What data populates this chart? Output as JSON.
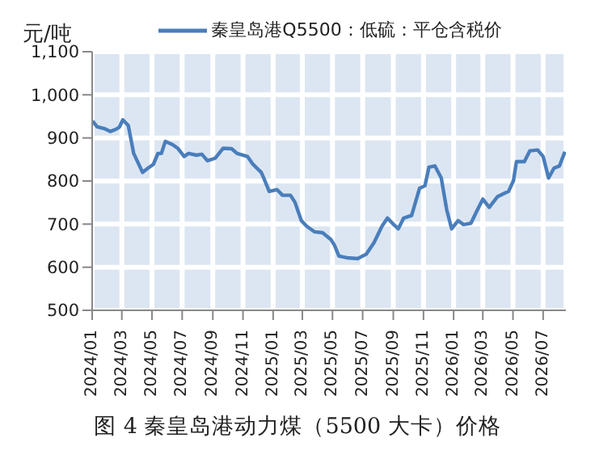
{
  "chart_data": {
    "type": "line",
    "title": "图 4 秦皇岛港动力煤（5500 大卡）价格",
    "ylabel": "元/吨",
    "x": [
      "2024-01-02",
      "2024-01-11",
      "2024-01-27",
      "2024-02-07",
      "2024-02-18",
      "2024-02-25",
      "2024-03-03",
      "2024-03-14",
      "2024-03-25",
      "2024-04-07",
      "2024-04-12",
      "2024-04-23",
      "2024-05-04",
      "2024-05-13",
      "2024-05-20",
      "2024-05-28",
      "2024-06-11",
      "2024-06-22",
      "2024-07-05",
      "2024-07-14",
      "2024-07-30",
      "2024-08-10",
      "2024-08-21",
      "2024-09-06",
      "2024-09-22",
      "2024-10-09",
      "2024-10-20",
      "2024-11-10",
      "2024-11-21",
      "2024-12-08",
      "2024-12-13",
      "2024-12-24",
      "2025-01-09",
      "2025-01-20",
      "2025-02-05",
      "2025-02-14",
      "2025-02-27",
      "2025-03-10",
      "2025-03-26",
      "2025-04-11",
      "2025-04-28",
      "2025-05-05",
      "2025-05-14",
      "2025-05-30",
      "2025-06-21",
      "2025-07-08",
      "2025-07-24",
      "2025-08-09",
      "2025-08-20",
      "2025-08-31",
      "2025-09-11",
      "2025-09-22",
      "2025-10-08",
      "2025-10-24",
      "2025-11-04",
      "2025-11-12",
      "2025-11-24",
      "2025-12-07",
      "2025-12-18",
      "2025-12-28",
      "2026-01-10",
      "2026-01-21",
      "2026-02-05",
      "2026-02-15",
      "2026-03-01",
      "2026-03-14",
      "2026-03-31",
      "2026-04-22",
      "2026-05-02",
      "2026-05-08",
      "2026-05-24",
      "2026-06-04",
      "2026-06-20",
      "2026-07-01",
      "2026-07-12",
      "2026-07-23",
      "2026-08-03",
      "2026-08-14"
    ],
    "series": [
      {
        "name": "秦皇岛港Q5500：低硫：平仓含税价",
        "color": "#4a7ebb",
        "values": [
          939,
          926,
          921,
          915,
          920,
          925,
          942,
          929,
          864,
          832,
          820,
          830,
          839,
          864,
          864,
          892,
          885,
          876,
          857,
          864,
          860,
          862,
          847,
          853,
          876,
          875,
          864,
          857,
          839,
          820,
          807,
          776,
          780,
          767,
          767,
          751,
          708,
          695,
          682,
          680,
          664,
          651,
          626,
          622,
          620,
          630,
          657,
          695,
          714,
          701,
          689,
          714,
          720,
          783,
          789,
          832,
          835,
          807,
          733,
          689,
          708,
          699,
          702,
          726,
          758,
          739,
          764,
          776,
          801,
          845,
          845,
          870,
          872,
          857,
          807,
          830,
          835,
          868
        ]
      }
    ],
    "xlim": [
      "2024-01-01",
      "2026-08-16"
    ],
    "xticks": [
      {
        "value": "2024-01-01",
        "label": "2024/01"
      },
      {
        "value": "2024-03-01",
        "label": "2024/03"
      },
      {
        "value": "2024-05-01",
        "label": "2024/05"
      },
      {
        "value": "2024-07-01",
        "label": "2024/07"
      },
      {
        "value": "2024-09-01",
        "label": "2024/09"
      },
      {
        "value": "2024-11-01",
        "label": "2024/11"
      },
      {
        "value": "2025-01-01",
        "label": "2025/01"
      },
      {
        "value": "2025-03-01",
        "label": "2025/03"
      },
      {
        "value": "2025-05-01",
        "label": "2025/05"
      },
      {
        "value": "2025-07-01",
        "label": "2025/07"
      },
      {
        "value": "2025-09-01",
        "label": "2025/09"
      },
      {
        "value": "2025-11-01",
        "label": "2025/11"
      },
      {
        "value": "2026-01-01",
        "label": "2026/01"
      },
      {
        "value": "2026-03-01",
        "label": "2026/03"
      },
      {
        "value": "2026-05-01",
        "label": "2026/05"
      },
      {
        "value": "2026-07-01",
        "label": "2026/07"
      }
    ],
    "ylim": [
      500,
      1100
    ],
    "yticks": [
      500,
      600,
      700,
      800,
      900,
      {
        "value": 1000,
        "label": "1,000"
      },
      {
        "value": 1100,
        "label": "1,100"
      }
    ],
    "grid": true,
    "legend": "top",
    "marker": "none",
    "line_style": "solid"
  }
}
